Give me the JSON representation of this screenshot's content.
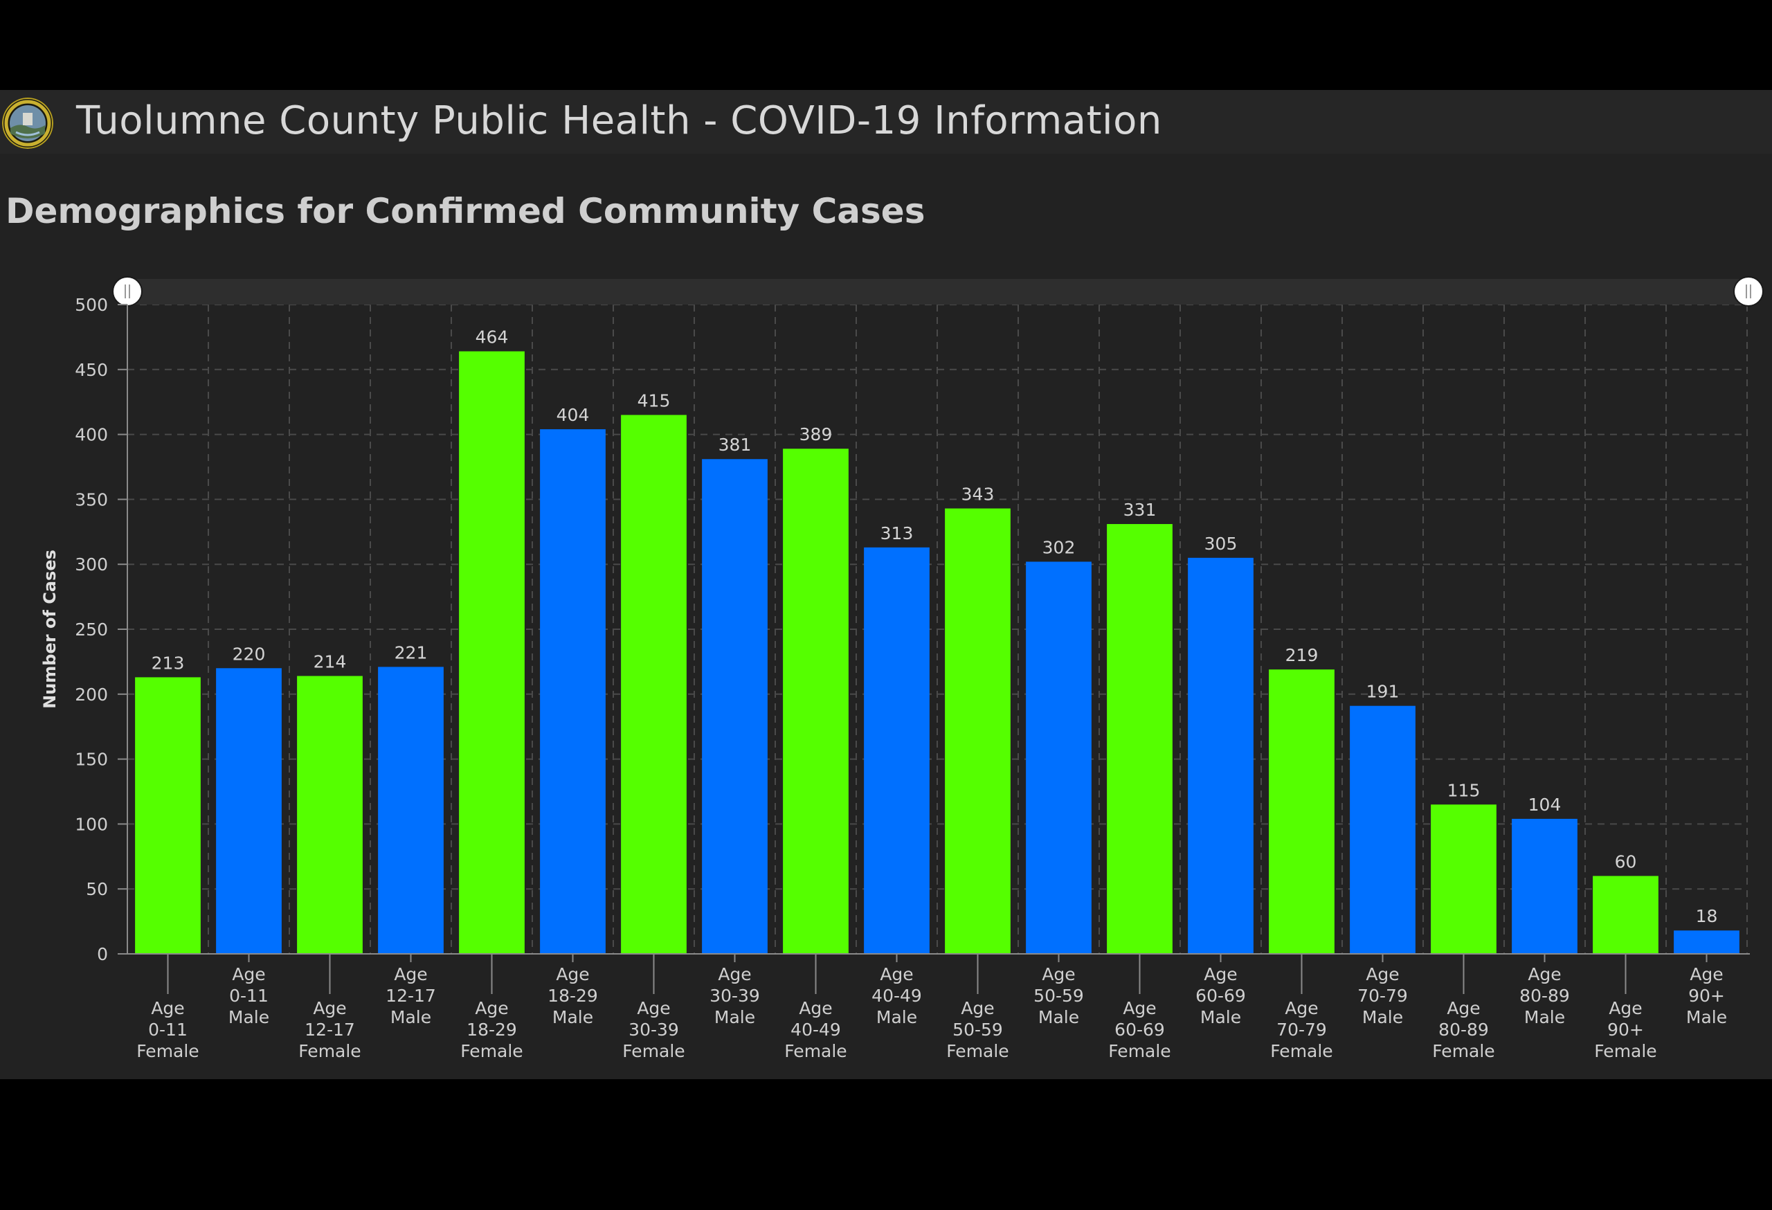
{
  "header": {
    "title": "Tuolumne County Public Health - COVID-19 Information",
    "logo_icon": "county-seal-icon"
  },
  "page": {
    "title": "Demographics for Confirmed Community Cases"
  },
  "colors": {
    "female": "#55ff00",
    "male": "#0070ff",
    "background": "#222222",
    "header": "#262626"
  },
  "chart_data": {
    "type": "bar",
    "title": "Demographics for Confirmed Community Cases",
    "xlabel": "",
    "ylabel": "Number of Cases",
    "ylim": [
      0,
      500
    ],
    "yticks": [
      0,
      50,
      100,
      150,
      200,
      250,
      300,
      350,
      400,
      450,
      500
    ],
    "grid": true,
    "categories": [
      [
        "Age",
        "0-11",
        "Female"
      ],
      [
        "Age",
        "0-11",
        "Male"
      ],
      [
        "Age",
        "12-17",
        "Female"
      ],
      [
        "Age",
        "12-17",
        "Male"
      ],
      [
        "Age",
        "18-29",
        "Female"
      ],
      [
        "Age",
        "18-29",
        "Male"
      ],
      [
        "Age",
        "30-39",
        "Female"
      ],
      [
        "Age",
        "30-39",
        "Male"
      ],
      [
        "Age",
        "40-49",
        "Female"
      ],
      [
        "Age",
        "40-49",
        "Male"
      ],
      [
        "Age",
        "50-59",
        "Female"
      ],
      [
        "Age",
        "50-59",
        "Male"
      ],
      [
        "Age",
        "60-69",
        "Female"
      ],
      [
        "Age",
        "60-69",
        "Male"
      ],
      [
        "Age",
        "70-79",
        "Female"
      ],
      [
        "Age",
        "70-79",
        "Male"
      ],
      [
        "Age",
        "80-89",
        "Female"
      ],
      [
        "Age",
        "80-89",
        "Male"
      ],
      [
        "Age",
        "90+",
        "Female"
      ],
      [
        "Age",
        "90+",
        "Male"
      ]
    ],
    "values": [
      213,
      220,
      214,
      221,
      464,
      404,
      415,
      381,
      389,
      313,
      343,
      302,
      331,
      305,
      219,
      191,
      115,
      104,
      60,
      18
    ],
    "sex": [
      "Female",
      "Male",
      "Female",
      "Male",
      "Female",
      "Male",
      "Female",
      "Male",
      "Female",
      "Male",
      "Female",
      "Male",
      "Female",
      "Male",
      "Female",
      "Male",
      "Female",
      "Male",
      "Female",
      "Male"
    ],
    "scroller": {
      "start": 0,
      "end": 1
    }
  }
}
